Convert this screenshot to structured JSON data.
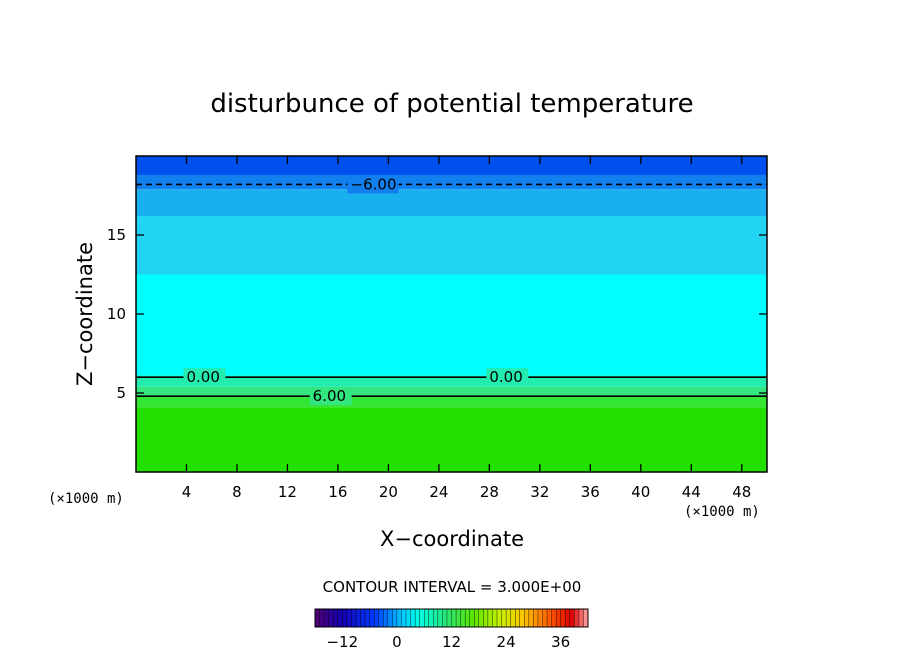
{
  "chart_data": {
    "type": "heatmap",
    "title": "disturbunce of potential temperature",
    "xlabel": "X−coordinate",
    "ylabel": "Z−coordinate",
    "x_unit": "(×1000 m)",
    "y_unit": "(×1000 m)",
    "xlim": [
      0,
      50
    ],
    "ylim": [
      0,
      20
    ],
    "x_ticks": [
      4,
      8,
      12,
      16,
      20,
      24,
      28,
      32,
      36,
      40,
      44,
      48
    ],
    "x_tick_labels": [
      "4",
      "8",
      "12",
      "16",
      "20",
      "24",
      "28",
      "32",
      "36",
      "40",
      "44",
      "48"
    ],
    "y_ticks": [
      5,
      10,
      15
    ],
    "y_tick_labels": [
      "5",
      "10",
      "15"
    ],
    "contour_interval_text": "CONTOUR INTERVAL = 3.000E+00",
    "contour_interval": 3,
    "contours": [
      {
        "level": 6,
        "label": "6.00",
        "z": 4.8,
        "label_x": 14,
        "style": "solid"
      },
      {
        "level": 0,
        "label": "0.00",
        "z": 6.0,
        "label_x": 4,
        "label_x2": 28,
        "style": "solid"
      },
      {
        "level": -6,
        "label": "−6.00",
        "z": 18.2,
        "label_x": 17,
        "style": "dashed"
      }
    ],
    "field_bands": [
      {
        "z0": 0,
        "z1": 4.1,
        "color": "#22e000"
      },
      {
        "z0": 4.1,
        "z1": 4.8,
        "color": "#33e633"
      },
      {
        "z0": 4.8,
        "z1": 5.4,
        "color": "#33e680"
      },
      {
        "z0": 5.4,
        "z1": 6.1,
        "color": "#22ecb0"
      },
      {
        "z0": 6.1,
        "z1": 12.5,
        "color": "#00ffff"
      },
      {
        "z0": 12.5,
        "z1": 16.2,
        "color": "#22d4f4"
      },
      {
        "z0": 16.2,
        "z1": 17.9,
        "color": "#1ab0f0"
      },
      {
        "z0": 17.9,
        "z1": 18.8,
        "color": "#1180ee"
      },
      {
        "z0": 18.8,
        "z1": 20,
        "color": "#0050f0"
      }
    ],
    "colorbar": {
      "min": -18,
      "max": 42,
      "tick_values": [
        -12,
        0,
        12,
        24,
        36
      ],
      "tick_labels": [
        "−12",
        "0",
        "12",
        "24",
        "36"
      ]
    },
    "grid": false,
    "legend": "none"
  }
}
